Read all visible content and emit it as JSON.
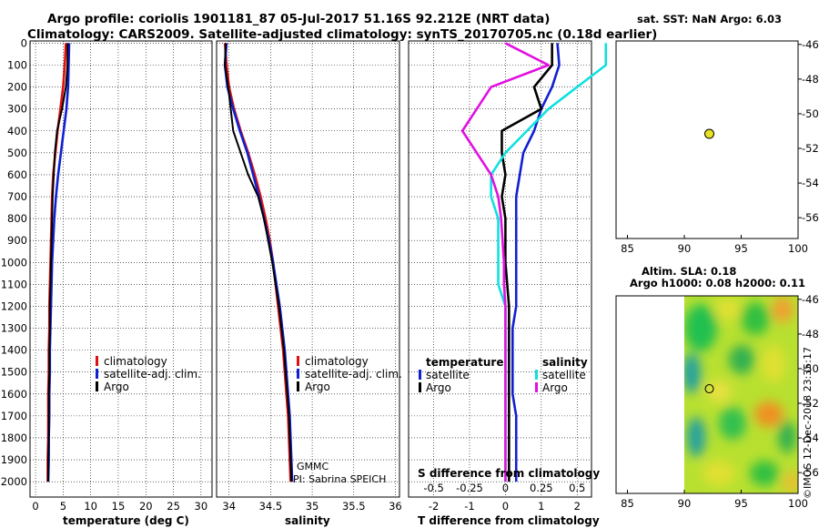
{
  "title_line1": "Argo profile: coriolis 1901181_87 05-Jul-2017 51.16S 92.212E (NRT data)",
  "title_line2": "Climatology: CARS2009. Satellite-adjusted climatology: synTS_20170705.nc (0.18d earlier)",
  "depth_ticks": [
    "0",
    "100",
    "200",
    "300",
    "400",
    "500",
    "600",
    "700",
    "800",
    "900",
    "1000",
    "1100",
    "1200",
    "1300",
    "1400",
    "1500",
    "1600",
    "1700",
    "1800",
    "1900",
    "2000"
  ],
  "colors": {
    "climatology": "#e01010",
    "satellite": "#1020d0",
    "argo": "#000000",
    "sat_salinity": "#10e0e0",
    "argo_salinity_diff": "#e010e0"
  },
  "chart_data": [
    {
      "type": "line",
      "panel": "temperature",
      "xlabel": "temperature (deg C)",
      "xlim": [
        -1,
        32
      ],
      "ylim": [
        2070,
        -10
      ],
      "xticks": [
        "0",
        "5",
        "10",
        "15",
        "20",
        "25",
        "30"
      ],
      "legend": [
        "climatology",
        "satellite-adj. clim.",
        "Argo"
      ],
      "series": [
        {
          "name": "climatology",
          "x": [
            5.5,
            5.3,
            5.0,
            4.5,
            4.0,
            3.6,
            3.2,
            3.0,
            2.9,
            2.8,
            2.7,
            2.6,
            2.5,
            2.5,
            2.4,
            2.4,
            2.3,
            2.3,
            2.3,
            2.2,
            2.2
          ],
          "y": [
            0,
            100,
            200,
            300,
            400,
            500,
            600,
            700,
            800,
            900,
            1000,
            1100,
            1200,
            1300,
            1400,
            1500,
            1600,
            1700,
            1800,
            1900,
            2000
          ]
        },
        {
          "name": "satellite-adj. clim.",
          "x": [
            6.1,
            6.0,
            5.9,
            5.6,
            5.1,
            4.6,
            4.1,
            3.7,
            3.4,
            3.2,
            3.0,
            2.9,
            2.8,
            2.7,
            2.6,
            2.6,
            2.5,
            2.5,
            2.4,
            2.4,
            2.3
          ],
          "y": [
            0,
            100,
            200,
            300,
            400,
            500,
            600,
            700,
            800,
            900,
            1000,
            1100,
            1200,
            1300,
            1400,
            1500,
            1600,
            1700,
            1800,
            1900,
            2000
          ]
        },
        {
          "name": "Argo",
          "x": [
            5.8,
            5.8,
            5.5,
            4.8,
            3.9,
            3.5,
            3.3,
            3.1,
            3.0,
            2.9,
            2.8,
            2.7,
            2.6,
            2.6,
            2.5,
            2.5,
            2.4,
            2.4,
            2.4,
            2.3,
            2.3
          ],
          "y": [
            0,
            100,
            200,
            300,
            400,
            500,
            600,
            700,
            800,
            900,
            1000,
            1100,
            1200,
            1300,
            1400,
            1500,
            1600,
            1700,
            1800,
            1900,
            2000
          ]
        }
      ]
    },
    {
      "type": "line",
      "panel": "salinity",
      "xlabel": "salinity",
      "xlim": [
        33.85,
        36.05
      ],
      "ylim": [
        2070,
        -10
      ],
      "xticks": [
        "34",
        "34.5",
        "35",
        "35.5",
        "36"
      ],
      "legend": [
        "climatology",
        "satellite-adj. clim.",
        "Argo"
      ],
      "credits": [
        "GMMC",
        "PI: Sabrina SPEICH"
      ],
      "series": [
        {
          "name": "climatology",
          "x": [
            33.95,
            33.97,
            34.0,
            34.06,
            34.14,
            34.23,
            34.31,
            34.38,
            34.44,
            34.49,
            34.53,
            34.56,
            34.59,
            34.62,
            34.65,
            34.67,
            34.69,
            34.71,
            34.72,
            34.73,
            34.74
          ],
          "y": [
            0,
            100,
            200,
            300,
            400,
            500,
            600,
            700,
            800,
            900,
            1000,
            1100,
            1200,
            1300,
            1400,
            1500,
            1600,
            1700,
            1800,
            1900,
            2000
          ]
        },
        {
          "name": "satellite-adj. clim.",
          "x": [
            33.97,
            33.95,
            33.98,
            34.05,
            34.13,
            34.22,
            34.29,
            34.36,
            34.42,
            34.48,
            34.53,
            34.57,
            34.61,
            34.64,
            34.67,
            34.69,
            34.71,
            34.73,
            34.74,
            34.75,
            34.76
          ],
          "y": [
            0,
            100,
            200,
            300,
            400,
            500,
            600,
            700,
            800,
            900,
            1000,
            1100,
            1200,
            1300,
            1400,
            1500,
            1600,
            1700,
            1800,
            1900,
            2000
          ]
        },
        {
          "name": "Argo",
          "x": [
            33.96,
            33.95,
            33.99,
            34.02,
            34.05,
            34.14,
            34.23,
            34.35,
            34.42,
            34.47,
            34.52,
            34.56,
            34.6,
            34.63,
            34.66,
            34.68,
            34.7,
            34.72,
            34.73,
            34.74,
            34.75
          ],
          "y": [
            0,
            100,
            200,
            300,
            400,
            500,
            600,
            700,
            800,
            900,
            1000,
            1100,
            1200,
            1300,
            1400,
            1500,
            1600,
            1700,
            1800,
            1900,
            2000
          ]
        }
      ]
    },
    {
      "type": "line",
      "panel": "differences",
      "xlabel": "T difference from climatology",
      "xlabel2": "S difference from climatology",
      "xlim": [
        -2.7,
        2.4
      ],
      "xticks": [
        "-2",
        "-1",
        "0",
        "1",
        "2"
      ],
      "xticks2": [
        "-0.5",
        "-0.25",
        "0",
        "0.25",
        "0.5"
      ],
      "ylim": [
        2070,
        -10
      ],
      "legend_temperature_title": "temperature",
      "legend_salinity_title": "salinity",
      "legend": [
        "satellite",
        "Argo",
        "satellite",
        "Argo"
      ],
      "series": [
        {
          "name": "T satellite",
          "x": [
            1.45,
            1.5,
            1.3,
            1.0,
            0.8,
            0.5,
            0.4,
            0.3,
            0.3,
            0.3,
            0.3,
            0.3,
            0.3,
            0.2,
            0.2,
            0.2,
            0.2,
            0.3,
            0.3,
            0.3,
            0.3
          ],
          "y": [
            0,
            100,
            200,
            300,
            400,
            500,
            600,
            700,
            800,
            900,
            1000,
            1100,
            1200,
            1300,
            1400,
            1500,
            1600,
            1700,
            1800,
            1900,
            2000
          ]
        },
        {
          "name": "T Argo",
          "x": [
            1.3,
            1.3,
            0.8,
            1.0,
            -0.1,
            -0.1,
            0.0,
            -0.1,
            0.0,
            0.0,
            0.0,
            0.05,
            0.1,
            0.1,
            0.1,
            0.1,
            0.1,
            0.1,
            0.1,
            0.1,
            0.1
          ],
          "y": [
            0,
            100,
            200,
            300,
            400,
            500,
            600,
            700,
            800,
            900,
            1000,
            1100,
            1200,
            1300,
            1400,
            1500,
            1600,
            1700,
            1800,
            1900,
            2000
          ]
        },
        {
          "name": "S satellite",
          "x": [
            0.7,
            0.7,
            0.5,
            0.3,
            0.15,
            0.0,
            -0.1,
            -0.1,
            -0.05,
            -0.05,
            -0.05,
            -0.05,
            0.0,
            0.0,
            0.0,
            0.0,
            0.0,
            0.0,
            0.0,
            0.0,
            0.0
          ],
          "y": [
            0,
            100,
            200,
            300,
            400,
            500,
            600,
            700,
            800,
            900,
            1000,
            1100,
            1200,
            1300,
            1400,
            1500,
            1600,
            1700,
            1800,
            1900,
            2000
          ]
        },
        {
          "name": "S Argo",
          "x": [
            0.0,
            0.3,
            -0.1,
            -0.2,
            -0.3,
            -0.2,
            -0.1,
            -0.05,
            -0.03,
            -0.02,
            -0.01,
            -0.01,
            0.0,
            0.0,
            0.0,
            0.0,
            0.0,
            0.0,
            0.0,
            0.0,
            0.0
          ],
          "y": [
            0,
            100,
            200,
            300,
            400,
            500,
            600,
            700,
            800,
            900,
            1000,
            1100,
            1200,
            1300,
            1400,
            1500,
            1600,
            1700,
            1800,
            1900,
            2000
          ]
        }
      ]
    },
    {
      "type": "scatter",
      "panel": "map_sst",
      "title": "sat. SST: NaN Argo: 6.03",
      "xlim": [
        84,
        100
      ],
      "ylim": [
        -57.2,
        -45.8
      ],
      "xticks": [
        "85",
        "90",
        "95",
        "100"
      ],
      "yticks": [
        "-46",
        "-48",
        "-50",
        "-52",
        "-54",
        "-56"
      ],
      "points": [
        {
          "x": 92.2,
          "y": -51.16
        }
      ]
    },
    {
      "type": "heatmap",
      "panel": "map_sla",
      "title": "Altim. SLA: 0.18",
      "title2": "Argo h1000: 0.08 h2000: 0.11",
      "xlim": [
        84,
        100
      ],
      "ylim": [
        -57.2,
        -45.8
      ],
      "xticks": [
        "85",
        "90",
        "95",
        "100"
      ],
      "yticks": [
        "-46",
        "-48",
        "-50",
        "-52",
        "-54",
        "-56"
      ],
      "data_xlim": [
        90,
        100
      ],
      "points": [
        {
          "x": 92.2,
          "y": -51.16
        }
      ],
      "watermark": "©IMOS 12-Dec-2018 23:35:17"
    }
  ]
}
